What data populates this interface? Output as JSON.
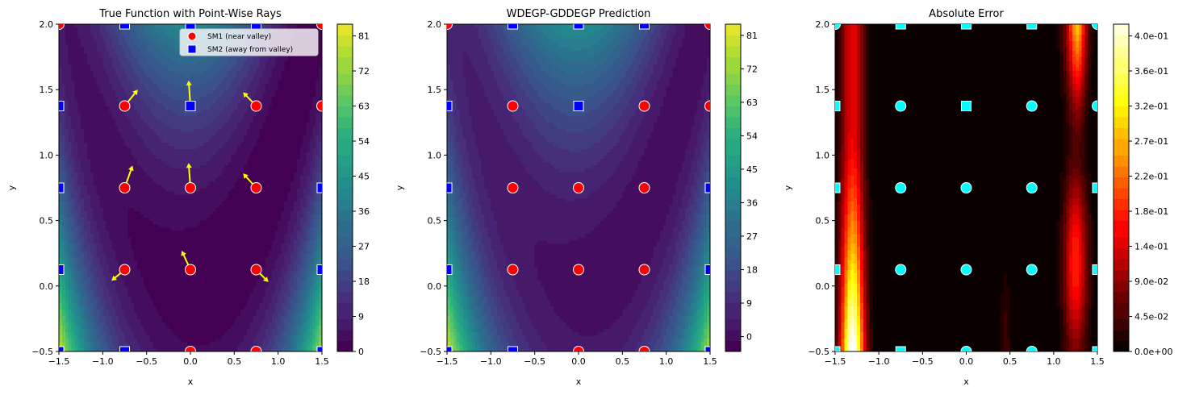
{
  "chart_data": [
    {
      "type": "contour",
      "title": "True Function with Point-Wise Rays",
      "xlabel": "x",
      "ylabel": "y",
      "xlim": [
        -1.5,
        1.5
      ],
      "ylim": [
        -0.5,
        2.0
      ],
      "xticks": [
        "−1.5",
        "−1.0",
        "−0.5",
        "0.0",
        "0.5",
        "1.0",
        "1.5"
      ],
      "yticks": [
        "−0.5",
        "0.0",
        "0.5",
        "1.0",
        "1.5",
        "2.0"
      ],
      "colormap": "viridis",
      "colorbar_range": [
        0,
        84
      ],
      "colorbar_ticks": [
        "0",
        "9",
        "18",
        "27",
        "36",
        "45",
        "54",
        "63",
        "72",
        "81"
      ],
      "legend": {
        "position": "top-right",
        "entries": [
          "SM1 (near valley)",
          "SM2 (away from valley)"
        ]
      },
      "sm1_points": [
        [
          -1.5,
          2.0
        ],
        [
          1.5,
          2.0
        ],
        [
          -0.75,
          1.375
        ],
        [
          0.75,
          1.375
        ],
        [
          1.5,
          1.375
        ],
        [
          -0.75,
          0.75
        ],
        [
          0.0,
          0.75
        ],
        [
          0.75,
          0.75
        ],
        [
          -0.75,
          0.125
        ],
        [
          0.0,
          0.125
        ],
        [
          0.75,
          0.125
        ],
        [
          0.0,
          -0.5
        ],
        [
          0.75,
          -0.5
        ]
      ],
      "sm2_points": [
        [
          -0.75,
          2.0
        ],
        [
          0.0,
          2.0
        ],
        [
          0.75,
          2.0
        ],
        [
          -1.5,
          1.375
        ],
        [
          0.0,
          1.375
        ],
        [
          -1.5,
          0.75
        ],
        [
          1.5,
          0.75
        ],
        [
          -1.5,
          0.125
        ],
        [
          1.5,
          0.125
        ],
        [
          -1.5,
          -0.5
        ],
        [
          -0.75,
          -0.5
        ],
        [
          1.5,
          -0.5
        ]
      ],
      "rays": [
        {
          "from": [
            -0.75,
            1.375
          ],
          "to": [
            -0.6,
            1.5
          ]
        },
        {
          "from": [
            0.0,
            1.375
          ],
          "to": [
            -0.02,
            1.57
          ]
        },
        {
          "from": [
            0.75,
            1.375
          ],
          "to": [
            0.6,
            1.48
          ]
        },
        {
          "from": [
            -0.75,
            0.75
          ],
          "to": [
            -0.66,
            0.92
          ]
        },
        {
          "from": [
            0.0,
            0.75
          ],
          "to": [
            -0.02,
            0.94
          ]
        },
        {
          "from": [
            0.75,
            0.75
          ],
          "to": [
            0.6,
            0.86
          ]
        },
        {
          "from": [
            -0.75,
            0.125
          ],
          "to": [
            -0.9,
            0.04
          ]
        },
        {
          "from": [
            0.0,
            0.125
          ],
          "to": [
            -0.1,
            0.27
          ]
        },
        {
          "from": [
            0.75,
            0.125
          ],
          "to": [
            0.89,
            0.03
          ]
        }
      ]
    },
    {
      "type": "contour",
      "title": "WDEGP-GDDEGP Prediction",
      "xlabel": "x",
      "ylabel": "y",
      "xlim": [
        -1.5,
        1.5
      ],
      "ylim": [
        -0.5,
        2.0
      ],
      "xticks": [
        "−1.5",
        "−1.0",
        "−0.5",
        "0.0",
        "0.5",
        "1.0",
        "1.5"
      ],
      "yticks": [
        "−0.5",
        "0.0",
        "0.5",
        "1.0",
        "1.5",
        "2.0"
      ],
      "colormap": "viridis",
      "colorbar_range": [
        -4,
        84
      ],
      "colorbar_ticks": [
        "0",
        "9",
        "18",
        "27",
        "36",
        "45",
        "54",
        "63",
        "72",
        "81"
      ],
      "sm1_points": [
        [
          -1.5,
          2.0
        ],
        [
          1.5,
          2.0
        ],
        [
          -0.75,
          1.375
        ],
        [
          0.75,
          1.375
        ],
        [
          1.5,
          1.375
        ],
        [
          -0.75,
          0.75
        ],
        [
          0.0,
          0.75
        ],
        [
          0.75,
          0.75
        ],
        [
          -0.75,
          0.125
        ],
        [
          0.0,
          0.125
        ],
        [
          0.75,
          0.125
        ],
        [
          0.0,
          -0.5
        ],
        [
          0.75,
          -0.5
        ]
      ],
      "sm2_points": [
        [
          -0.75,
          2.0
        ],
        [
          0.0,
          2.0
        ],
        [
          0.75,
          2.0
        ],
        [
          -1.5,
          1.375
        ],
        [
          0.0,
          1.375
        ],
        [
          -1.5,
          0.75
        ],
        [
          1.5,
          0.75
        ],
        [
          -1.5,
          0.125
        ],
        [
          1.5,
          0.125
        ],
        [
          -1.5,
          -0.5
        ],
        [
          -0.75,
          -0.5
        ],
        [
          1.5,
          -0.5
        ]
      ]
    },
    {
      "type": "contour",
      "title": "Absolute Error",
      "xlabel": "x",
      "ylabel": "y",
      "xlim": [
        -1.5,
        1.5
      ],
      "ylim": [
        -0.5,
        2.0
      ],
      "xticks": [
        "−1.5",
        "−1.0",
        "−0.5",
        "0.0",
        "0.5",
        "1.0",
        "1.5"
      ],
      "yticks": [
        "−0.5",
        "0.0",
        "0.5",
        "1.0",
        "1.5",
        "2.0"
      ],
      "colormap": "hot",
      "colorbar_range": [
        0,
        0.42
      ],
      "colorbar_ticks": [
        "0.0e+00",
        "4.5e-02",
        "9.0e-02",
        "1.4e-01",
        "1.8e-01",
        "2.2e-01",
        "2.7e-01",
        "3.2e-01",
        "3.6e-01",
        "4.0e-01"
      ],
      "colorbar_tick_values": [
        0,
        0.045,
        0.09,
        0.135,
        0.18,
        0.225,
        0.27,
        0.315,
        0.36,
        0.405
      ],
      "sm1_points": [
        [
          -1.5,
          2.0
        ],
        [
          1.5,
          2.0
        ],
        [
          -0.75,
          1.375
        ],
        [
          0.75,
          1.375
        ],
        [
          1.5,
          1.375
        ],
        [
          -0.75,
          0.75
        ],
        [
          0.0,
          0.75
        ],
        [
          0.75,
          0.75
        ],
        [
          -0.75,
          0.125
        ],
        [
          0.0,
          0.125
        ],
        [
          0.75,
          0.125
        ],
        [
          0.0,
          -0.5
        ],
        [
          0.75,
          -0.5
        ]
      ],
      "sm2_points": [
        [
          -0.75,
          2.0
        ],
        [
          0.0,
          2.0
        ],
        [
          0.75,
          2.0
        ],
        [
          -1.5,
          1.375
        ],
        [
          0.0,
          1.375
        ],
        [
          -1.5,
          0.75
        ],
        [
          1.5,
          0.75
        ],
        [
          -1.5,
          0.125
        ],
        [
          1.5,
          0.125
        ],
        [
          -1.5,
          -0.5
        ],
        [
          -0.75,
          -0.5
        ],
        [
          1.5,
          -0.5
        ]
      ]
    }
  ],
  "colors": {
    "sm1": "#ff0000",
    "sm2": "#0000ff",
    "error_markers": "#00ffff",
    "rays": "#ffff00"
  }
}
